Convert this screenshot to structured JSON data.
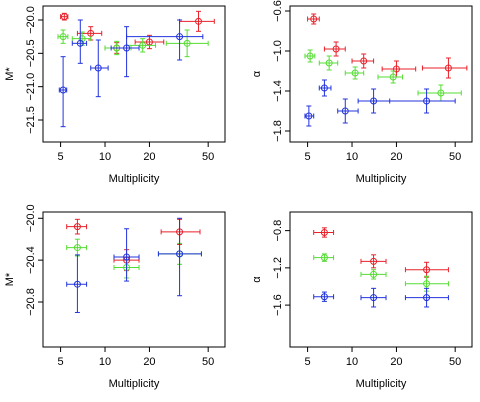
{
  "chart_data": [
    {
      "type": "scatter",
      "xlabel": "Multiplicity",
      "ylabel": "M*",
      "log_x": true,
      "xlim": [
        3.8,
        65
      ],
      "ylim": [
        -21.83,
        -19.79
      ],
      "xticks": [
        5,
        10,
        20,
        50
      ],
      "yticks": [
        {
          "value": -20,
          "label": "−20.0"
        },
        {
          "value": -20.5,
          "label": "−20.5"
        },
        {
          "value": -21,
          "label": "−21.0"
        },
        {
          "value": -21.5,
          "label": "−21.5"
        }
      ],
      "series": [
        {
          "color": "#e8202a",
          "x": [
            5.3,
            8,
            12,
            20,
            43
          ],
          "values": [
            -19.95,
            -20.2,
            -20.42,
            -20.33,
            -20.02
          ],
          "xmin": [
            5,
            6.5,
            10,
            16,
            32
          ],
          "xmax": [
            5.6,
            9.5,
            14,
            25,
            55
          ],
          "ymin": [
            -20.0,
            -20.3,
            -20.5,
            -20.43,
            -20.17
          ],
          "ymax": [
            -19.9,
            -20.1,
            -20.34,
            -20.23,
            -19.87
          ]
        },
        {
          "color": "#55dd33",
          "x": [
            5.2,
            7,
            12,
            18,
            36
          ],
          "values": [
            -20.25,
            -20.28,
            -20.42,
            -20.38,
            -20.35
          ],
          "xmin": [
            4.8,
            6,
            10,
            14,
            26
          ],
          "xmax": [
            5.6,
            8,
            15,
            22,
            50
          ],
          "ymin": [
            -20.35,
            -20.38,
            -20.52,
            -20.48,
            -20.55
          ],
          "ymax": [
            -20.15,
            -20.18,
            -20.32,
            -20.28,
            -20.15
          ]
        },
        {
          "color": "#2233dd",
          "x": [
            5.2,
            6.8,
            9,
            14,
            32
          ],
          "values": [
            -21.05,
            -20.35,
            -20.72,
            -20.42,
            -20.25
          ],
          "xmin": [
            4.9,
            6,
            8,
            11,
            14
          ],
          "xmax": [
            5.5,
            7.5,
            10.5,
            17,
            46
          ],
          "ymin": [
            -21.6,
            -20.65,
            -21.15,
            -20.85,
            -20.6
          ],
          "ymax": [
            -20.55,
            -20.0,
            -20.3,
            -20.1,
            -20.0
          ]
        }
      ]
    },
    {
      "type": "scatter",
      "xlabel": "Multiplicity",
      "ylabel": "α",
      "log_x": true,
      "xlim": [
        3.8,
        65
      ],
      "ylim": [
        -1.91,
        -0.55
      ],
      "xticks": [
        5,
        10,
        20,
        50
      ],
      "yticks": [
        {
          "value": -0.6,
          "label": "−0.6"
        },
        {
          "value": -1,
          "label": "−1.0"
        },
        {
          "value": -1.4,
          "label": "−1.4"
        },
        {
          "value": -1.8,
          "label": "−1.8"
        }
      ],
      "series": [
        {
          "color": "#e8202a",
          "x": [
            5.5,
            7.8,
            12,
            20,
            45
          ],
          "values": [
            -0.68,
            -0.98,
            -1.1,
            -1.18,
            -1.17
          ],
          "xmin": [
            5,
            6.5,
            10,
            16,
            30
          ],
          "xmax": [
            6,
            9,
            14,
            27,
            60
          ],
          "ymin": [
            -0.73,
            -1.05,
            -1.17,
            -1.26,
            -1.27
          ],
          "ymax": [
            -0.63,
            -0.91,
            -1.03,
            -1.1,
            -1.07
          ]
        },
        {
          "color": "#55dd33",
          "x": [
            5.2,
            7,
            10.5,
            19,
            40
          ],
          "values": [
            -1.05,
            -1.12,
            -1.22,
            -1.26,
            -1.42
          ],
          "xmin": [
            4.8,
            6,
            9,
            15,
            28
          ],
          "xmax": [
            5.6,
            8,
            12,
            22,
            55
          ],
          "ymin": [
            -1.11,
            -1.19,
            -1.28,
            -1.32,
            -1.5
          ],
          "ymax": [
            -0.99,
            -1.05,
            -1.16,
            -1.2,
            -1.34
          ]
        },
        {
          "color": "#2233dd",
          "x": [
            5.1,
            6.5,
            9,
            14,
            32
          ],
          "values": [
            -1.65,
            -1.37,
            -1.6,
            -1.5,
            -1.5
          ],
          "xmin": [
            4.8,
            6,
            8,
            11,
            14
          ],
          "xmax": [
            5.5,
            7.2,
            11,
            18,
            50
          ],
          "ymin": [
            -1.75,
            -1.45,
            -1.72,
            -1.62,
            -1.62
          ],
          "ymax": [
            -1.55,
            -1.29,
            -1.48,
            -1.38,
            -1.38
          ]
        }
      ]
    },
    {
      "type": "scatter",
      "xlabel": "Multiplicity",
      "ylabel": "M*",
      "log_x": true,
      "xlim": [
        3.8,
        65
      ],
      "ylim": [
        -21.23,
        -19.94
      ],
      "xticks": [
        5,
        10,
        20,
        50
      ],
      "yticks": [
        {
          "value": -20,
          "label": "−20.0"
        },
        {
          "value": -20.4,
          "label": "−20.4"
        },
        {
          "value": -20.8,
          "label": "−20.8"
        }
      ],
      "series": [
        {
          "color": "#e8202a",
          "x": [
            6.5,
            14,
            32
          ],
          "values": [
            -20.08,
            -20.4,
            -20.13
          ],
          "xmin": [
            5.5,
            11.5,
            24
          ],
          "xmax": [
            7.5,
            17,
            44
          ],
          "ymin": [
            -20.15,
            -20.5,
            -20.25
          ],
          "ymax": [
            -20.01,
            -20.3,
            -20.01
          ]
        },
        {
          "color": "#55dd33",
          "x": [
            6.5,
            14,
            32
          ],
          "values": [
            -20.28,
            -20.47,
            -20.34
          ],
          "xmin": [
            5.5,
            11.5,
            23
          ],
          "xmax": [
            7.5,
            17,
            45
          ],
          "ymin": [
            -20.36,
            -20.57,
            -20.44
          ],
          "ymax": [
            -20.2,
            -20.37,
            -20.24
          ]
        },
        {
          "color": "#2233dd",
          "x": [
            6.5,
            14,
            32
          ],
          "values": [
            -20.63,
            -20.37,
            -20.34
          ],
          "xmin": [
            5.5,
            11.5,
            23
          ],
          "xmax": [
            7.5,
            17,
            45
          ],
          "ymin": [
            -20.9,
            -20.6,
            -20.74
          ],
          "ymax": [
            -20.35,
            -20.1,
            -20.0
          ]
        }
      ]
    },
    {
      "type": "scatter",
      "xlabel": "Multiplicity",
      "ylabel": "α",
      "log_x": true,
      "xlim": [
        3.8,
        65
      ],
      "ylim": [
        -2.05,
        -0.6
      ],
      "xticks": [
        5,
        10,
        20,
        50
      ],
      "yticks": [
        {
          "value": -0.8,
          "label": "−0.8"
        },
        {
          "value": -1.2,
          "label": "−1.2"
        },
        {
          "value": -1.6,
          "label": "−1.6"
        }
      ],
      "series": [
        {
          "color": "#e8202a",
          "x": [
            6.5,
            14,
            32
          ],
          "values": [
            -0.82,
            -1.13,
            -1.22
          ],
          "xmin": [
            5.5,
            11.5,
            23
          ],
          "xmax": [
            7.5,
            17,
            45
          ],
          "ymin": [
            -0.87,
            -1.2,
            -1.3
          ],
          "ymax": [
            -0.77,
            -1.06,
            -1.14
          ]
        },
        {
          "color": "#55dd33",
          "x": [
            6.5,
            14,
            32
          ],
          "values": [
            -1.09,
            -1.27,
            -1.37
          ],
          "xmin": [
            5.5,
            11.5,
            23
          ],
          "xmax": [
            7.5,
            17,
            45
          ],
          "ymin": [
            -1.13,
            -1.32,
            -1.45
          ],
          "ymax": [
            -1.05,
            -1.22,
            -1.29
          ]
        },
        {
          "color": "#2233dd",
          "x": [
            6.5,
            14,
            32
          ],
          "values": [
            -1.51,
            -1.52,
            -1.52
          ],
          "xmin": [
            5.5,
            11.5,
            23
          ],
          "xmax": [
            7.5,
            17,
            45
          ],
          "ymin": [
            -1.56,
            -1.62,
            -1.62
          ],
          "ymax": [
            -1.46,
            -1.42,
            -1.42
          ]
        }
      ]
    }
  ]
}
